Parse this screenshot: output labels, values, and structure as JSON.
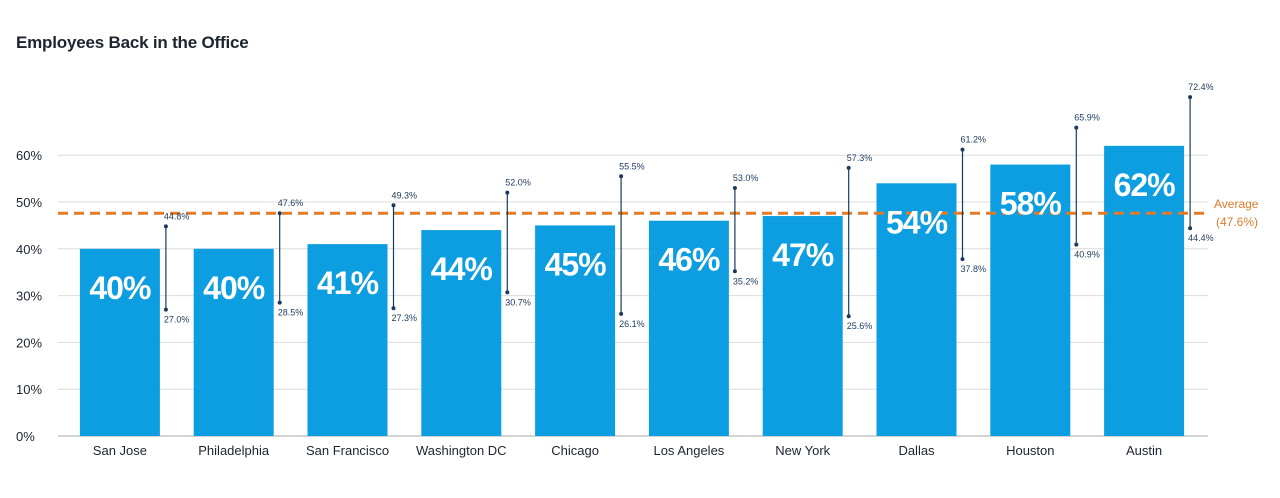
{
  "title": "Employees Back in the Office",
  "chart_data": {
    "type": "bar",
    "title": "Employees Back in the Office",
    "categories": [
      "San Jose",
      "Philadelphia",
      "San Francisco",
      "Washington DC",
      "Chicago",
      "Los Angeles",
      "New York",
      "Dallas",
      "Houston",
      "Austin"
    ],
    "values": [
      40,
      40,
      41,
      44,
      45,
      46,
      47,
      54,
      58,
      62
    ],
    "value_labels": [
      "40%",
      "40%",
      "41%",
      "44%",
      "45%",
      "46%",
      "47%",
      "54%",
      "58%",
      "62%"
    ],
    "range_high": [
      44.8,
      47.6,
      49.3,
      52.0,
      55.5,
      53.0,
      57.3,
      61.2,
      65.9,
      72.4
    ],
    "range_low": [
      27.0,
      28.5,
      27.3,
      30.7,
      26.1,
      35.2,
      25.6,
      37.8,
      40.9,
      44.4
    ],
    "range_high_labels": [
      "44.8%",
      "47.6%",
      "49.3%",
      "52.0%",
      "55.5%",
      "53.0%",
      "57.3%",
      "61.2%",
      "65.9%",
      "72.4%"
    ],
    "range_low_labels": [
      "27.0%",
      "28.5%",
      "27.3%",
      "30.7%",
      "26.1%",
      "35.2%",
      "25.6%",
      "37.8%",
      "40.9%",
      "44.4%"
    ],
    "ylim": [
      0,
      60
    ],
    "yticks": [
      0,
      10,
      20,
      30,
      40,
      50,
      60
    ],
    "ytick_labels": [
      "0%",
      "10%",
      "20%",
      "30%",
      "40%",
      "50%",
      "60%"
    ],
    "average": 47.6,
    "average_label_line1": "Average",
    "average_label_line2": "(47.6%)",
    "grid": true,
    "colors": {
      "bar": "#0c9ee0",
      "average": "#e07b28",
      "range": "#1c3a5e",
      "grid": "#dcdcdc",
      "axis": "#aaaaaa"
    }
  }
}
